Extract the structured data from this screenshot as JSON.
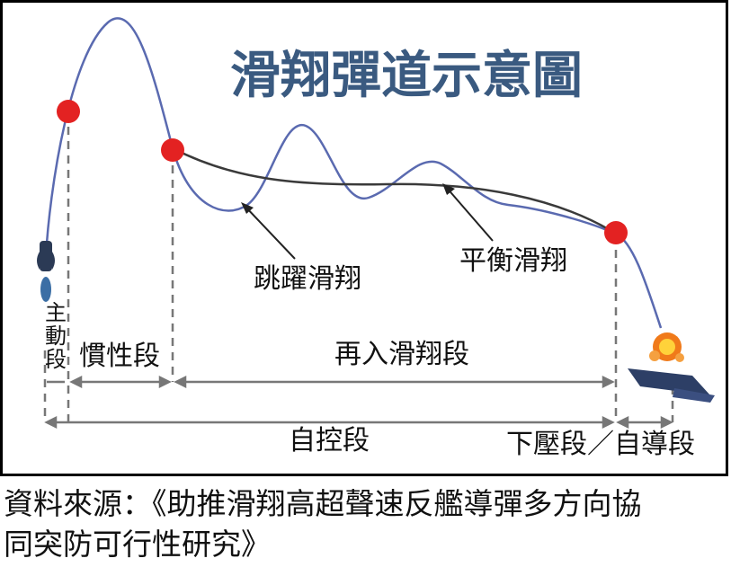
{
  "title": "滑翔彈道示意圖",
  "labels": {
    "skip_glide": "跳躍滑翔",
    "equilibrium_glide": "平衡滑翔"
  },
  "segments": {
    "powered": "主動段",
    "inertial": "慣性段",
    "reentry_glide": "再入滑翔段",
    "unpowered": "自控段",
    "dive_terminal": "下壓段／自導段"
  },
  "caption_line1": "資料來源：《助推滑翔高超聲速反艦導彈多方向協",
  "caption_line2": "同突防可行性研究》",
  "colors": {
    "title": "#3a5a80",
    "skip_curve": "#5a6ab0",
    "equilibrium_curve": "#3a3a3a",
    "marker": "#e32222",
    "dimension_line": "#777777",
    "explosion": "#f07a1a"
  }
}
